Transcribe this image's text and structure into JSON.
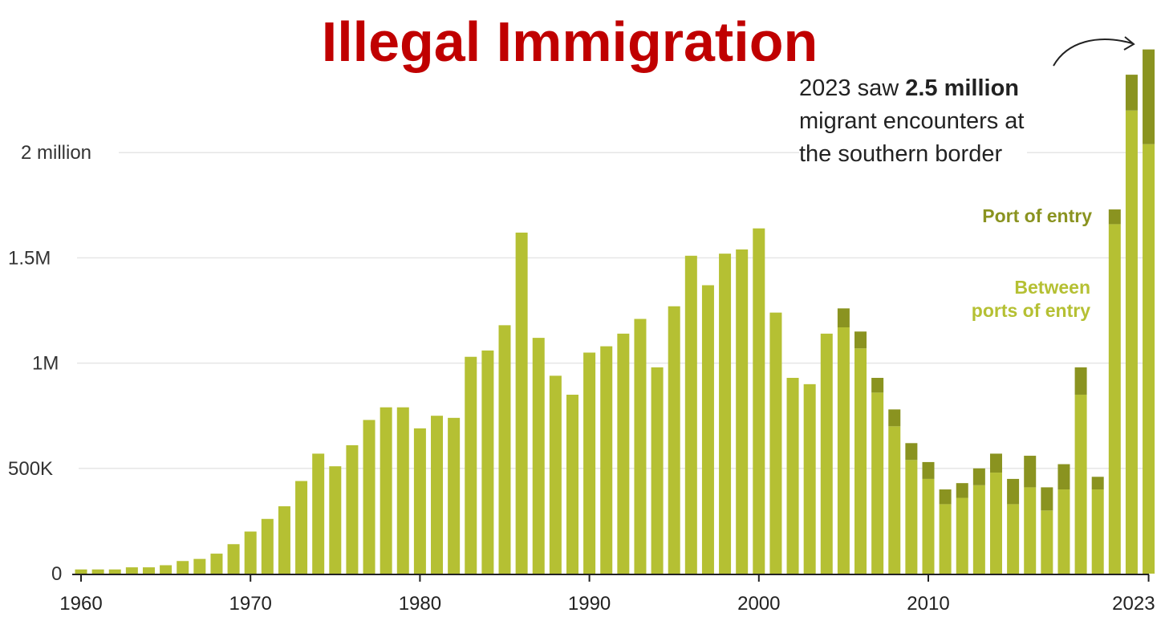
{
  "title": "Illegal Immigration",
  "annotation": {
    "prefix": "2023 saw ",
    "emphasis": "2.5 million",
    "line2": "migrant encounters at",
    "line3": "the southern border"
  },
  "chart_data": {
    "type": "bar",
    "stacked": true,
    "x": [
      1960,
      1961,
      1962,
      1963,
      1964,
      1965,
      1966,
      1967,
      1968,
      1969,
      1970,
      1971,
      1972,
      1973,
      1974,
      1975,
      1976,
      1977,
      1978,
      1979,
      1980,
      1981,
      1982,
      1983,
      1984,
      1985,
      1986,
      1987,
      1988,
      1989,
      1990,
      1991,
      1992,
      1993,
      1994,
      1995,
      1996,
      1997,
      1998,
      1999,
      2000,
      2001,
      2002,
      2003,
      2004,
      2005,
      2006,
      2007,
      2008,
      2009,
      2010,
      2011,
      2012,
      2013,
      2014,
      2015,
      2016,
      2017,
      2018,
      2019,
      2020,
      2021,
      2022,
      2023
    ],
    "series": [
      {
        "name": "Between ports of entry",
        "color": "#b5c033",
        "values": [
          20,
          20,
          20,
          30,
          30,
          40,
          60,
          70,
          95,
          140,
          200,
          260,
          320,
          440,
          570,
          510,
          610,
          730,
          790,
          790,
          690,
          750,
          740,
          1030,
          1060,
          1180,
          1620,
          1120,
          940,
          850,
          1050,
          1080,
          1140,
          1210,
          980,
          1270,
          1510,
          1370,
          1520,
          1540,
          1640,
          1240,
          930,
          900,
          1140,
          1170,
          1070,
          860,
          700,
          540,
          450,
          330,
          360,
          420,
          480,
          330,
          410,
          300,
          400,
          850,
          400,
          1660,
          2200,
          2040
        ]
      },
      {
        "name": "Port of entry",
        "color": "#8a9320",
        "values": [
          0,
          0,
          0,
          0,
          0,
          0,
          0,
          0,
          0,
          0,
          0,
          0,
          0,
          0,
          0,
          0,
          0,
          0,
          0,
          0,
          0,
          0,
          0,
          0,
          0,
          0,
          0,
          0,
          0,
          0,
          0,
          0,
          0,
          0,
          0,
          0,
          0,
          0,
          0,
          0,
          0,
          0,
          0,
          0,
          0,
          90,
          80,
          70,
          80,
          80,
          80,
          70,
          70,
          80,
          90,
          120,
          150,
          110,
          120,
          130,
          60,
          70,
          170,
          450
        ]
      }
    ],
    "value_unit": "thousands",
    "yticks": [
      0,
      500,
      1000,
      1500,
      2000
    ],
    "ytick_labels": [
      "0",
      "500K",
      "1M",
      "1.5M",
      "2 million"
    ],
    "xticks": [
      1960,
      1970,
      1980,
      1990,
      2000,
      2010,
      2023
    ],
    "xtick_labels": [
      "1960",
      "1970",
      "1980",
      "1990",
      "2000",
      "2010",
      "2023"
    ],
    "ylim": [
      0,
      2500
    ],
    "grid": true,
    "legend_labels": {
      "port": "Port of entry",
      "between_line1": "Between",
      "between_line2": "ports of entry"
    }
  }
}
